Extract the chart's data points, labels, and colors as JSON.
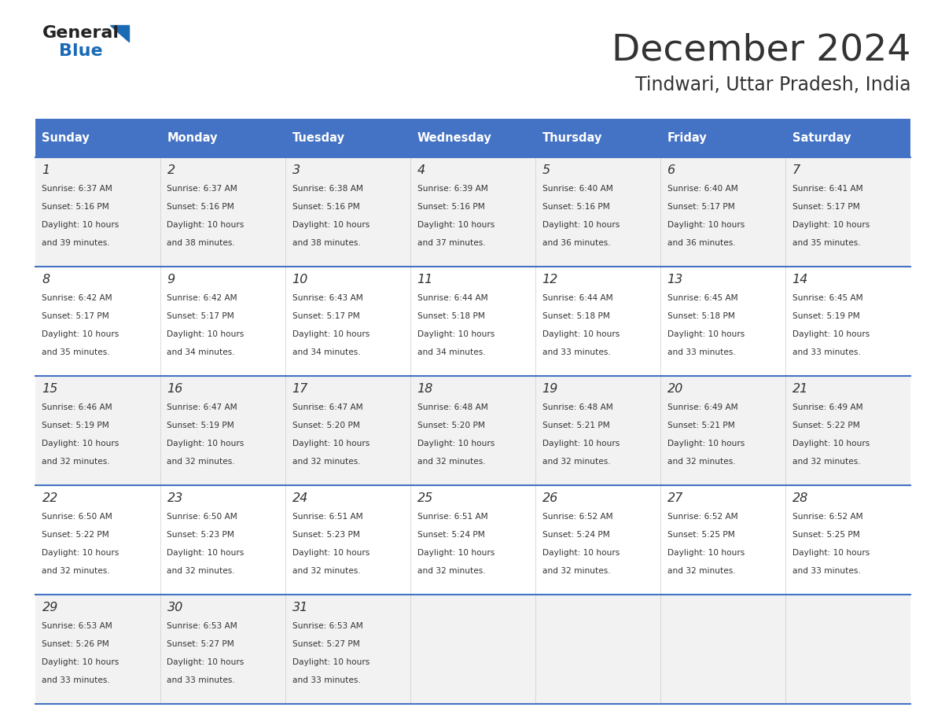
{
  "title": "December 2024",
  "subtitle": "Tindwari, Uttar Pradesh, India",
  "header_color": "#4472C4",
  "header_text_color": "#FFFFFF",
  "day_names": [
    "Sunday",
    "Monday",
    "Tuesday",
    "Wednesday",
    "Thursday",
    "Friday",
    "Saturday"
  ],
  "bg_color": "#FFFFFF",
  "cell_bg_even": "#F2F2F2",
  "cell_bg_odd": "#FFFFFF",
  "border_color": "#4472C4",
  "text_color": "#333333",
  "days": [
    {
      "day": 1,
      "col": 0,
      "row": 0,
      "sunrise": "6:37 AM",
      "sunset": "5:16 PM",
      "daylight": "10 hours and 39 minutes."
    },
    {
      "day": 2,
      "col": 1,
      "row": 0,
      "sunrise": "6:37 AM",
      "sunset": "5:16 PM",
      "daylight": "10 hours and 38 minutes."
    },
    {
      "day": 3,
      "col": 2,
      "row": 0,
      "sunrise": "6:38 AM",
      "sunset": "5:16 PM",
      "daylight": "10 hours and 38 minutes."
    },
    {
      "day": 4,
      "col": 3,
      "row": 0,
      "sunrise": "6:39 AM",
      "sunset": "5:16 PM",
      "daylight": "10 hours and 37 minutes."
    },
    {
      "day": 5,
      "col": 4,
      "row": 0,
      "sunrise": "6:40 AM",
      "sunset": "5:16 PM",
      "daylight": "10 hours and 36 minutes."
    },
    {
      "day": 6,
      "col": 5,
      "row": 0,
      "sunrise": "6:40 AM",
      "sunset": "5:17 PM",
      "daylight": "10 hours and 36 minutes."
    },
    {
      "day": 7,
      "col": 6,
      "row": 0,
      "sunrise": "6:41 AM",
      "sunset": "5:17 PM",
      "daylight": "10 hours and 35 minutes."
    },
    {
      "day": 8,
      "col": 0,
      "row": 1,
      "sunrise": "6:42 AM",
      "sunset": "5:17 PM",
      "daylight": "10 hours and 35 minutes."
    },
    {
      "day": 9,
      "col": 1,
      "row": 1,
      "sunrise": "6:42 AM",
      "sunset": "5:17 PM",
      "daylight": "10 hours and 34 minutes."
    },
    {
      "day": 10,
      "col": 2,
      "row": 1,
      "sunrise": "6:43 AM",
      "sunset": "5:17 PM",
      "daylight": "10 hours and 34 minutes."
    },
    {
      "day": 11,
      "col": 3,
      "row": 1,
      "sunrise": "6:44 AM",
      "sunset": "5:18 PM",
      "daylight": "10 hours and 34 minutes."
    },
    {
      "day": 12,
      "col": 4,
      "row": 1,
      "sunrise": "6:44 AM",
      "sunset": "5:18 PM",
      "daylight": "10 hours and 33 minutes."
    },
    {
      "day": 13,
      "col": 5,
      "row": 1,
      "sunrise": "6:45 AM",
      "sunset": "5:18 PM",
      "daylight": "10 hours and 33 minutes."
    },
    {
      "day": 14,
      "col": 6,
      "row": 1,
      "sunrise": "6:45 AM",
      "sunset": "5:19 PM",
      "daylight": "10 hours and 33 minutes."
    },
    {
      "day": 15,
      "col": 0,
      "row": 2,
      "sunrise": "6:46 AM",
      "sunset": "5:19 PM",
      "daylight": "10 hours and 32 minutes."
    },
    {
      "day": 16,
      "col": 1,
      "row": 2,
      "sunrise": "6:47 AM",
      "sunset": "5:19 PM",
      "daylight": "10 hours and 32 minutes."
    },
    {
      "day": 17,
      "col": 2,
      "row": 2,
      "sunrise": "6:47 AM",
      "sunset": "5:20 PM",
      "daylight": "10 hours and 32 minutes."
    },
    {
      "day": 18,
      "col": 3,
      "row": 2,
      "sunrise": "6:48 AM",
      "sunset": "5:20 PM",
      "daylight": "10 hours and 32 minutes."
    },
    {
      "day": 19,
      "col": 4,
      "row": 2,
      "sunrise": "6:48 AM",
      "sunset": "5:21 PM",
      "daylight": "10 hours and 32 minutes."
    },
    {
      "day": 20,
      "col": 5,
      "row": 2,
      "sunrise": "6:49 AM",
      "sunset": "5:21 PM",
      "daylight": "10 hours and 32 minutes."
    },
    {
      "day": 21,
      "col": 6,
      "row": 2,
      "sunrise": "6:49 AM",
      "sunset": "5:22 PM",
      "daylight": "10 hours and 32 minutes."
    },
    {
      "day": 22,
      "col": 0,
      "row": 3,
      "sunrise": "6:50 AM",
      "sunset": "5:22 PM",
      "daylight": "10 hours and 32 minutes."
    },
    {
      "day": 23,
      "col": 1,
      "row": 3,
      "sunrise": "6:50 AM",
      "sunset": "5:23 PM",
      "daylight": "10 hours and 32 minutes."
    },
    {
      "day": 24,
      "col": 2,
      "row": 3,
      "sunrise": "6:51 AM",
      "sunset": "5:23 PM",
      "daylight": "10 hours and 32 minutes."
    },
    {
      "day": 25,
      "col": 3,
      "row": 3,
      "sunrise": "6:51 AM",
      "sunset": "5:24 PM",
      "daylight": "10 hours and 32 minutes."
    },
    {
      "day": 26,
      "col": 4,
      "row": 3,
      "sunrise": "6:52 AM",
      "sunset": "5:24 PM",
      "daylight": "10 hours and 32 minutes."
    },
    {
      "day": 27,
      "col": 5,
      "row": 3,
      "sunrise": "6:52 AM",
      "sunset": "5:25 PM",
      "daylight": "10 hours and 32 minutes."
    },
    {
      "day": 28,
      "col": 6,
      "row": 3,
      "sunrise": "6:52 AM",
      "sunset": "5:25 PM",
      "daylight": "10 hours and 33 minutes."
    },
    {
      "day": 29,
      "col": 0,
      "row": 4,
      "sunrise": "6:53 AM",
      "sunset": "5:26 PM",
      "daylight": "10 hours and 33 minutes."
    },
    {
      "day": 30,
      "col": 1,
      "row": 4,
      "sunrise": "6:53 AM",
      "sunset": "5:27 PM",
      "daylight": "10 hours and 33 minutes."
    },
    {
      "day": 31,
      "col": 2,
      "row": 4,
      "sunrise": "6:53 AM",
      "sunset": "5:27 PM",
      "daylight": "10 hours and 33 minutes."
    }
  ],
  "logo_color_general": "#222222",
  "logo_color_blue": "#1a6ab5"
}
